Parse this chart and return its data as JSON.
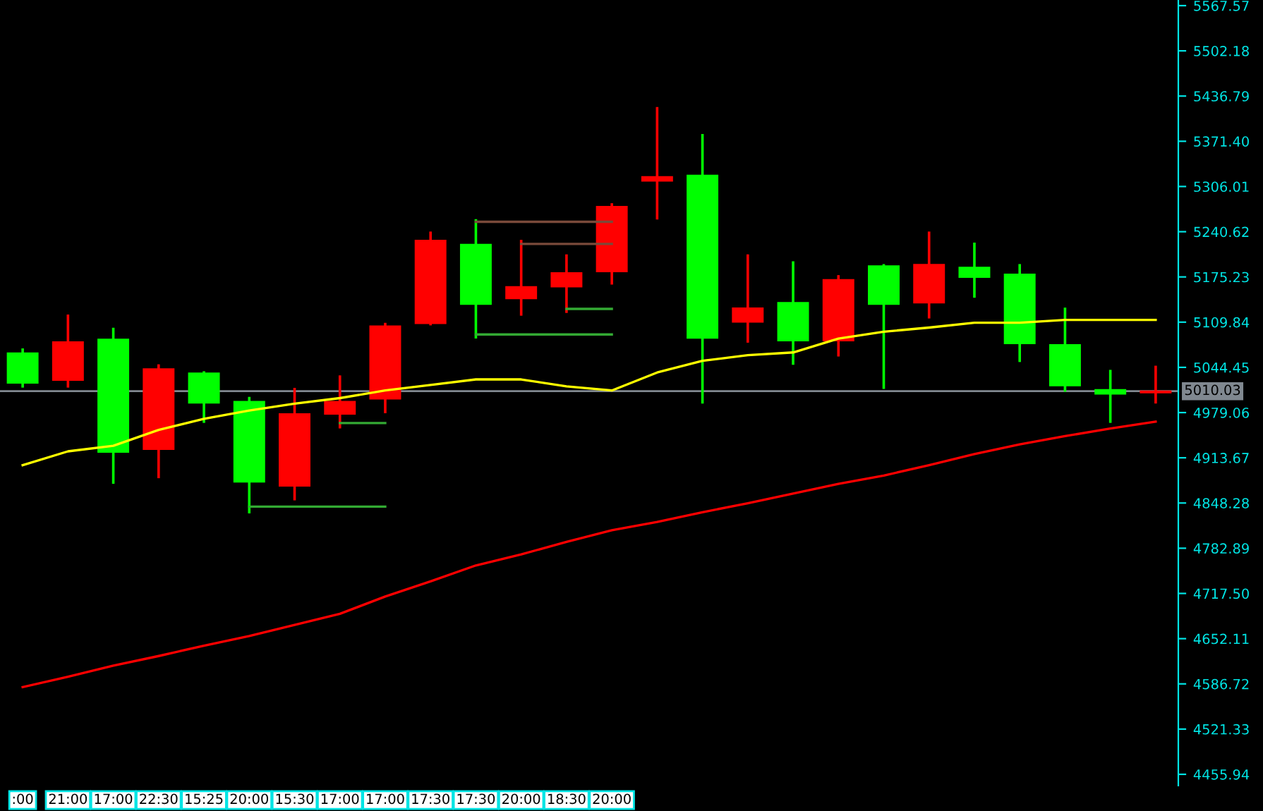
{
  "chart_data": {
    "type": "candlestick",
    "categories": [
      ":00",
      "21:00",
      "17:00",
      "22:30",
      "15:25",
      "20:00",
      "15:30",
      "17:00",
      "17:00",
      "17:30",
      "17:30",
      "20:00",
      "18:30",
      "20:00",
      null,
      null,
      null,
      null,
      null,
      null,
      null,
      null,
      null,
      null,
      null,
      null
    ],
    "ohlc": [
      [
        5066,
        5070,
        5017,
        5021
      ],
      [
        5025,
        5119,
        5017,
        5082
      ],
      [
        5086,
        5100,
        4878,
        4921
      ],
      [
        4925,
        5047,
        4886,
        5043
      ],
      [
        5037,
        5037,
        4966,
        4992
      ],
      [
        4996,
        5000,
        4835,
        4878
      ],
      [
        4872,
        5013,
        4854,
        4978
      ],
      [
        4976,
        5031,
        4958,
        4996
      ],
      [
        4998,
        5107,
        4980,
        5105
      ],
      [
        5107,
        5239,
        5107,
        5229
      ],
      [
        5223,
        5257,
        5088,
        5135
      ],
      [
        5143,
        5227,
        5121,
        5162
      ],
      [
        5160,
        5206,
        5125,
        5182
      ],
      [
        5182,
        5280,
        5166,
        5278
      ],
      [
        5313,
        5419,
        5260,
        5321
      ],
      [
        5323,
        5380,
        4994,
        5086
      ],
      [
        5109,
        5206,
        5082,
        5131
      ],
      [
        5139,
        5196,
        5050,
        5082
      ],
      [
        5082,
        5176,
        5062,
        5172
      ],
      [
        5192,
        5192,
        5015,
        5135
      ],
      [
        5137,
        5239,
        5117,
        5194
      ],
      [
        5190,
        5223,
        5147,
        5174
      ],
      [
        5180,
        5192,
        5054,
        5078
      ],
      [
        5078,
        5129,
        5011,
        5017
      ],
      [
        5013,
        5039,
        4966,
        5005
      ],
      [
        5007,
        5045,
        4994,
        5011
      ]
    ],
    "colors": [
      "#00ff00",
      "#ff0000",
      "#00ff00",
      "#ff0000",
      "#00ff00",
      "#00ff00",
      "#ff0000",
      "#ff0000",
      "#ff0000",
      "#ff0000",
      "#00ff00",
      "#ff0000",
      "#ff0000",
      "#ff0000",
      "#ff0000",
      "#00ff00",
      "#ff0000",
      "#00ff00",
      "#ff0000",
      "#00ff00",
      "#ff0000",
      "#00ff00",
      "#00ff00",
      "#00ff00",
      "#00ff00",
      "#ff0000"
    ],
    "series": [
      {
        "type": "line",
        "color": "#ffff00",
        "values": [
          4903,
          4923,
          4931,
          4954,
          4970,
          4982,
          4992,
          5000,
          5011,
          5019,
          5027,
          5027,
          5017,
          5011,
          5037,
          5054,
          5062,
          5066,
          5086,
          5096,
          5102,
          5109,
          5109,
          5113,
          5113,
          5113
        ]
      },
      {
        "type": "line",
        "color": "#ff0000",
        "values": [
          4582,
          4597,
          4613,
          4627,
          4642,
          4656,
          4672,
          4688,
          4713,
          4735,
          4758,
          4774,
          4792,
          4809,
          4821,
          4835,
          4848,
          4862,
          4876,
          4888,
          4903,
          4919,
          4933,
          4945,
          4956,
          4966
        ]
      },
      {
        "type": "line",
        "color": "#33aa33",
        "values": [
          null,
          null,
          null,
          null,
          null,
          4843,
          4843,
          4843,
          4843,
          null,
          null,
          null,
          null,
          null,
          null,
          null,
          null,
          null,
          null,
          null,
          null,
          null,
          null,
          null,
          null,
          null
        ]
      },
      {
        "type": "line",
        "color": "#33aa33",
        "values": [
          null,
          null,
          null,
          null,
          null,
          null,
          null,
          4964,
          4964,
          null,
          null,
          null,
          null,
          null,
          null,
          null,
          null,
          null,
          null,
          null,
          null,
          null,
          null,
          null,
          null,
          null
        ]
      },
      {
        "type": "line",
        "color": "#33aa33",
        "values": [
          null,
          null,
          null,
          null,
          null,
          null,
          null,
          null,
          null,
          null,
          5092,
          5092,
          5092,
          5092,
          null,
          null,
          null,
          null,
          null,
          null,
          null,
          null,
          null,
          null,
          null,
          null
        ]
      },
      {
        "type": "line",
        "color": "#33aa33",
        "values": [
          null,
          null,
          null,
          null,
          null,
          null,
          null,
          null,
          null,
          null,
          null,
          null,
          5129,
          5129,
          null,
          null,
          null,
          null,
          null,
          null,
          null,
          null,
          null,
          null,
          null,
          null
        ]
      },
      {
        "type": "line",
        "color": "#7a4a3a",
        "values": [
          null,
          null,
          null,
          null,
          null,
          null,
          null,
          null,
          null,
          null,
          5255,
          5255,
          5255,
          5255,
          null,
          null,
          null,
          null,
          null,
          null,
          null,
          null,
          null,
          null,
          null,
          null
        ]
      },
      {
        "type": "line",
        "color": "#7a4a3a",
        "values": [
          null,
          null,
          null,
          null,
          null,
          null,
          null,
          null,
          null,
          null,
          null,
          5223,
          5223,
          5223,
          null,
          null,
          null,
          null,
          null,
          null,
          null,
          null,
          null,
          null,
          null,
          null
        ]
      }
    ],
    "ylim": [
      4439.6,
      5575.7
    ],
    "yticks": [
      4455.94,
      4521.33,
      4586.72,
      4652.11,
      {
        "value": 4717.5,
        "label": "4717.50"
      },
      4782.89,
      4848.28,
      4913.67,
      4979.06,
      5044.45,
      5109.84,
      5175.23,
      5240.62,
      5306.01,
      {
        "value": 5371.4,
        "label": "5371.40"
      },
      5436.79,
      5502.18,
      5567.57
    ],
    "ref_lines": [
      {
        "axis": "y",
        "value": 5010.03,
        "label": "5010.03",
        "color": "#808890"
      }
    ],
    "grid": false,
    "legend": false
  }
}
